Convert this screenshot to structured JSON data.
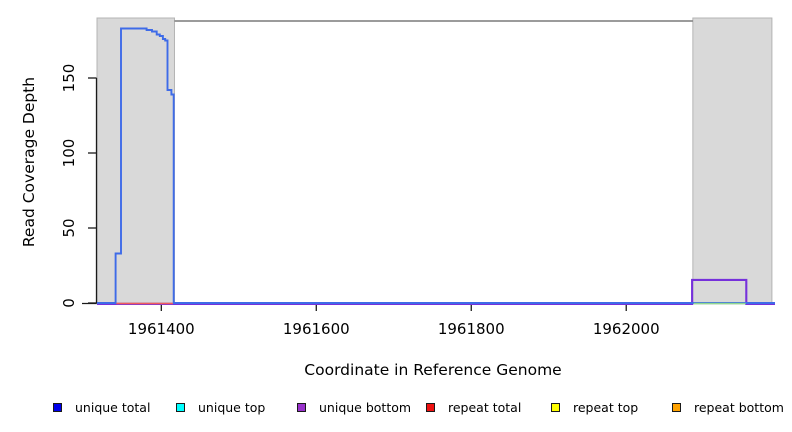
{
  "figure": {
    "xlabel": "Coordinate in Reference Genome",
    "ylabel": "Read Coverage Depth"
  },
  "chart_data": {
    "type": "line",
    "title": "",
    "xlabel": "Coordinate in Reference Genome",
    "ylabel": "Read Coverage Depth",
    "xlim": [
      1961317,
      1962192
    ],
    "ylim": [
      0,
      190
    ],
    "xticks": [
      1961400,
      1961600,
      1961800,
      1962000
    ],
    "yticks": [
      0,
      50,
      100,
      150
    ],
    "grid": false,
    "colors": {
      "repeat_region_fill": "#d9d9d9",
      "repeat_region_border": "#b4b4b4",
      "boundary_line": "#7a7a7a",
      "axis": "#1a1a1a"
    },
    "repeat_region_shading": [
      [
        1961317,
        1961417
      ],
      [
        1962086,
        1962188
      ]
    ],
    "boundary_line": {
      "y": 188,
      "x": [
        1961417,
        1962086
      ]
    },
    "series": [
      {
        "name": "unique bottom",
        "color": "#7631DB",
        "width": 2.1,
        "points": [
          [
            1961317,
            0
          ],
          [
            1962085,
            0
          ],
          [
            1962085,
            16
          ],
          [
            1962155,
            16
          ],
          [
            1962155,
            0
          ],
          [
            1962192,
            0
          ]
        ]
      },
      {
        "name": "unique total",
        "color": "#3E6BE8",
        "width": 1.9,
        "points": [
          [
            1961317,
            0
          ],
          [
            1961341,
            0
          ],
          [
            1961341,
            33
          ],
          [
            1961348,
            33
          ],
          [
            1961348,
            183
          ],
          [
            1961381,
            183
          ],
          [
            1961381,
            182
          ],
          [
            1961388,
            182
          ],
          [
            1961388,
            181
          ],
          [
            1961394,
            181
          ],
          [
            1961394,
            179
          ],
          [
            1961398,
            179
          ],
          [
            1961398,
            178
          ],
          [
            1961402,
            178
          ],
          [
            1961402,
            176
          ],
          [
            1961405,
            176
          ],
          [
            1961405,
            175
          ],
          [
            1961408,
            175
          ],
          [
            1961408,
            142
          ],
          [
            1961413,
            142
          ],
          [
            1961413,
            139
          ],
          [
            1961416,
            139
          ],
          [
            1961416,
            0
          ],
          [
            1962192,
            0
          ]
        ]
      },
      {
        "name": "repeat total",
        "color": "#F15C5C",
        "width": 1.6,
        "points": [
          [
            1961342,
            0
          ],
          [
            1961415,
            0
          ]
        ]
      },
      {
        "name": "unique top",
        "color": "#8FD98F",
        "width": 1.6,
        "points": [
          [
            1962087,
            0
          ],
          [
            1962154,
            0
          ]
        ]
      }
    ],
    "legend": {
      "position": "bottom",
      "items": [
        {
          "label": "unique total",
          "color": "#0000EB"
        },
        {
          "label": "unique top",
          "color": "#00FFFF"
        },
        {
          "label": "unique bottom",
          "color": "#9932CC"
        },
        {
          "label": "repeat total",
          "color": "#EE1111"
        },
        {
          "label": "repeat top",
          "color": "#FFFF00"
        },
        {
          "label": "repeat bottom",
          "color": "#FFA200"
        }
      ]
    }
  }
}
